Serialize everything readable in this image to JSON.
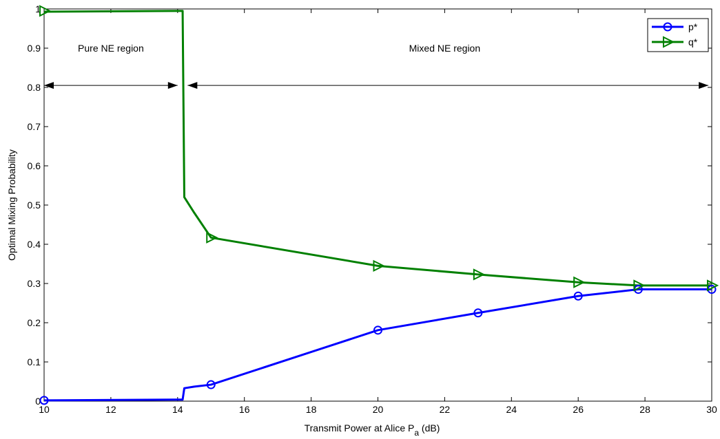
{
  "chart_data": {
    "type": "line",
    "xlabel_main": "Transmit Power at Alice P",
    "xlabel_sub": "a",
    "xlabel_unit": " (dB)",
    "ylabel": "Optimal Mixing Probability",
    "xlim": [
      10,
      30
    ],
    "ylim": [
      0,
      1
    ],
    "xticks": [
      "10",
      "12",
      "14",
      "16",
      "18",
      "20",
      "22",
      "24",
      "26",
      "28",
      "30"
    ],
    "yticks": [
      "0",
      "0.1",
      "0.2",
      "0.3",
      "0.4",
      "0.5",
      "0.6",
      "0.7",
      "0.8",
      "0.9",
      "1"
    ],
    "grid": false,
    "legend_position": "top-right",
    "series": [
      {
        "name": "p*",
        "color": "#0000ff",
        "marker": "circle",
        "line": [
          [
            10,
            0.002
          ],
          [
            14.15,
            0.004
          ],
          [
            14.2,
            0.033
          ],
          [
            14.5,
            0.037
          ],
          [
            15,
            0.042
          ],
          [
            20,
            0.181
          ],
          [
            23,
            0.225
          ],
          [
            26,
            0.268
          ],
          [
            27.8,
            0.285
          ],
          [
            30,
            0.285
          ]
        ],
        "markers": [
          [
            10,
            0.002
          ],
          [
            15,
            0.042
          ],
          [
            20,
            0.181
          ],
          [
            23,
            0.225
          ],
          [
            26,
            0.268
          ],
          [
            27.8,
            0.285
          ],
          [
            30,
            0.285
          ]
        ]
      },
      {
        "name": "q*",
        "color": "#008000",
        "marker": "triangle-right",
        "line": [
          [
            10,
            0.993
          ],
          [
            14.15,
            0.995
          ],
          [
            14.2,
            0.52
          ],
          [
            14.5,
            0.48
          ],
          [
            15,
            0.417
          ],
          [
            20,
            0.345
          ],
          [
            23,
            0.323
          ],
          [
            26,
            0.303
          ],
          [
            27.8,
            0.295
          ],
          [
            30,
            0.295
          ]
        ],
        "markers": [
          [
            10,
            0.995
          ],
          [
            15,
            0.417
          ],
          [
            20,
            0.345
          ],
          [
            23,
            0.323
          ],
          [
            26,
            0.303
          ],
          [
            27.8,
            0.295
          ],
          [
            30,
            0.295
          ]
        ]
      }
    ],
    "annotations": [
      {
        "text": "Pure NE region",
        "x": 12.0,
        "y": 0.9,
        "arrow_from": 10.0,
        "arrow_to": 14.0,
        "arrow_y": 0.805
      },
      {
        "text": "Mixed NE region",
        "x": 22.0,
        "y": 0.9,
        "arrow_from": 14.3,
        "arrow_to": 29.9,
        "arrow_y": 0.805
      }
    ]
  }
}
